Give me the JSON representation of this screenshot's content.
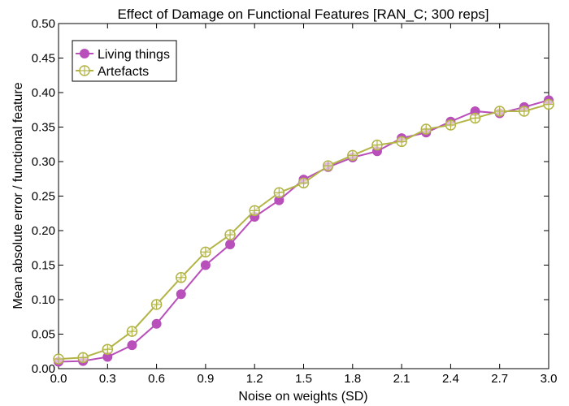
{
  "chart_data": {
    "type": "line",
    "title": "Effect of Damage on Functional Features [RAN_C; 300 reps]",
    "xlabel": "Noise on weights (SD)",
    "ylabel": "Mean absolute error / functional feature",
    "xlim": [
      0.0,
      3.0
    ],
    "ylim": [
      0.0,
      0.5
    ],
    "x_ticks": [
      "0.0",
      "0.3",
      "0.6",
      "0.9",
      "1.2",
      "1.5",
      "1.8",
      "2.1",
      "2.4",
      "2.7",
      "3.0"
    ],
    "y_ticks": [
      "0.00",
      "0.05",
      "0.10",
      "0.15",
      "0.20",
      "0.25",
      "0.30",
      "0.35",
      "0.40",
      "0.45",
      "0.50"
    ],
    "grid": false,
    "legend_position": "top-left",
    "x": [
      0.0,
      0.15,
      0.3,
      0.45,
      0.6,
      0.75,
      0.9,
      1.05,
      1.2,
      1.35,
      1.5,
      1.65,
      1.8,
      1.95,
      2.1,
      2.25,
      2.4,
      2.55,
      2.7,
      2.85,
      3.0
    ],
    "series": [
      {
        "name": "Living things",
        "color": "#b84fba",
        "marker": "filled-circle",
        "values": [
          0.01,
          0.011,
          0.017,
          0.034,
          0.065,
          0.108,
          0.15,
          0.18,
          0.22,
          0.244,
          0.274,
          0.292,
          0.306,
          0.315,
          0.334,
          0.342,
          0.358,
          0.373,
          0.37,
          0.379,
          0.389
        ]
      },
      {
        "name": "Artefacts",
        "color": "#b2b446",
        "marker": "open-circle-plus",
        "values": [
          0.014,
          0.016,
          0.028,
          0.054,
          0.093,
          0.132,
          0.169,
          0.194,
          0.229,
          0.255,
          0.269,
          0.294,
          0.309,
          0.324,
          0.329,
          0.347,
          0.353,
          0.363,
          0.373,
          0.373,
          0.383
        ]
      }
    ]
  }
}
